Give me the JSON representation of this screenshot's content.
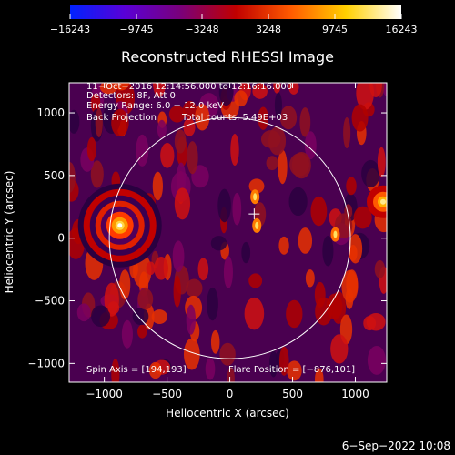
{
  "chart_data": {
    "type": "heatmap",
    "title": "Reconstructed RHESSI Image",
    "xlabel": "Heliocentric X (arcsec)",
    "ylabel": "Heliocentric Y (arcsec)",
    "xlim": [
      -1280,
      1250
    ],
    "ylim": [
      -1150,
      1240
    ],
    "x_ticks": [
      -1000,
      -500,
      0,
      500,
      1000
    ],
    "y_ticks": [
      -1000,
      -500,
      0,
      500,
      1000
    ],
    "x_tick_labels": [
      "−1000",
      "−500",
      "0",
      "500",
      "1000"
    ],
    "y_tick_labels": [
      "−1000",
      "−500",
      "0",
      "500",
      "1000"
    ],
    "colorbar": {
      "min": -16243,
      "max": 16243,
      "tick_labels": [
        "−16243",
        "−9745",
        "−3248",
        "3248",
        "9745",
        "16243"
      ],
      "colors": [
        "#0022ff",
        "#5a00d6",
        "#7a007a",
        "#c00000",
        "#ff5a00",
        "#ffd000",
        "#ffffff"
      ]
    },
    "annotations": {
      "time_range": "11−Oct−2016 12:14:56.000 to 12:16:16.000",
      "detectors": "Detectors: 8F, Att 0",
      "energy": "Energy Range: 6.0 − 12.0 keV",
      "method": "Back Projection",
      "counts": "Total counts: 5.49E+03",
      "spin_axis": "Spin Axis = [194,193]",
      "flare_position": "Flare Position = [−876,101]"
    },
    "solar_limb_radius": 960,
    "spin_axis_xy": [
      194,
      193
    ],
    "flare_xy": [
      -876,
      101
    ],
    "grid": false
  },
  "footer": {
    "date": "6−Sep−2022 10:08"
  }
}
